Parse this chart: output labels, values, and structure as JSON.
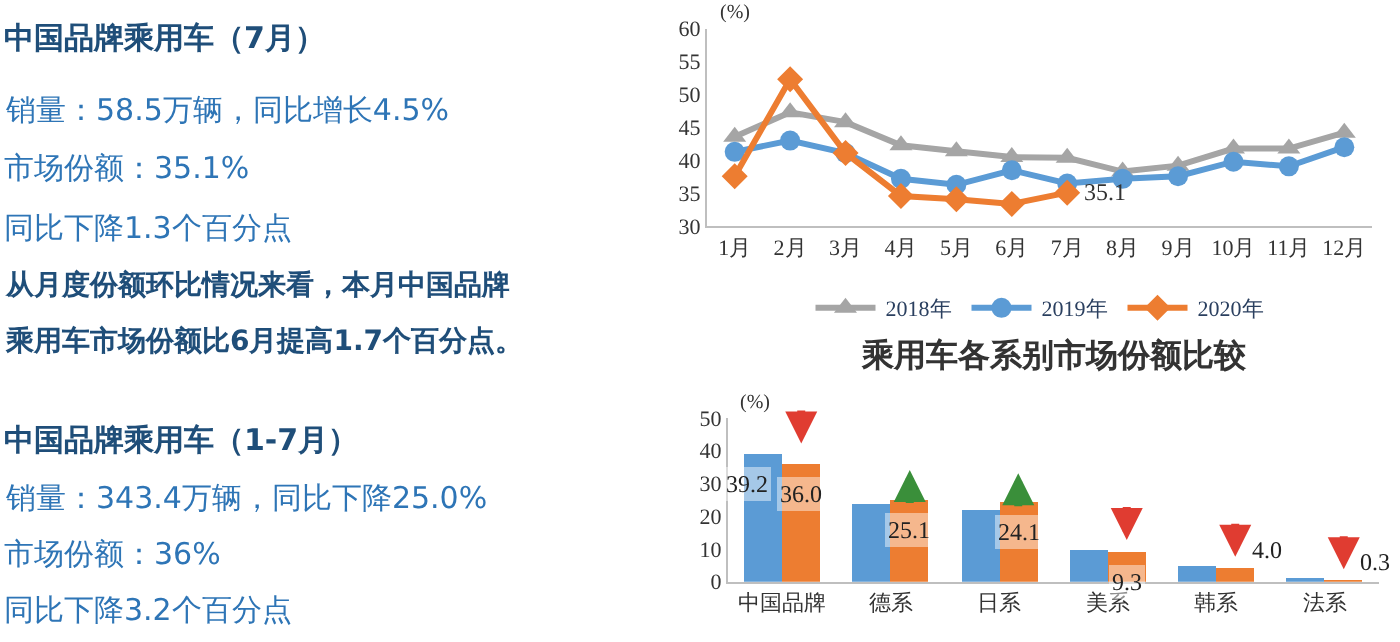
{
  "chart_data": [
    {
      "type": "other",
      "title": "中国品牌乘用车（7月）",
      "annotations": [
        "销量：58.5万辆，同比增长4.5%",
        "市场份额：35.1%",
        "同比下降1.3个百分点",
        "从月度份额环比情况来看，本月中国品牌",
        "乘用车市场份额比6月提高1.7个百分点。"
      ]
    },
    {
      "type": "other",
      "title": "中国品牌乘用车（1-7月）",
      "annotations": [
        "销量：343.4万辆，同比下降25.0%",
        "市场份额：36%",
        "同比下降3.2个百分点"
      ]
    },
    {
      "type": "line",
      "ylabel": "(%)",
      "categories": [
        "1月",
        "2月",
        "3月",
        "4月",
        "5月",
        "6月",
        "7月",
        "8月",
        "9月",
        "10月",
        "11月",
        "12月"
      ],
      "ylim": [
        30,
        60
      ],
      "yticks": [
        30,
        35,
        40,
        45,
        50,
        55,
        60
      ],
      "legend": "bottom",
      "series": [
        {
          "name": "2018年",
          "color": "#a5a5a5",
          "marker": "triangle",
          "values": [
            43.6,
            47.3,
            45.8,
            42.3,
            41.4,
            40.5,
            40.4,
            38.3,
            39.2,
            41.8,
            41.8,
            44.2
          ]
        },
        {
          "name": "2019年",
          "color": "#5b9bd5",
          "marker": "circle",
          "values": [
            41.3,
            43.0,
            41.1,
            37.2,
            36.3,
            38.5,
            36.5,
            37.2,
            37.6,
            39.8,
            39.1,
            42.0
          ]
        },
        {
          "name": "2020年",
          "color": "#ed7d31",
          "marker": "diamond",
          "values": [
            37.6,
            52.3,
            41.1,
            34.6,
            34.1,
            33.4,
            35.1,
            null,
            null,
            null,
            null,
            null
          ],
          "value_labels": [
            null,
            null,
            null,
            null,
            null,
            null,
            "35.1",
            null,
            null,
            null,
            null,
            null
          ]
        }
      ]
    },
    {
      "type": "bar",
      "title": "乘用车各系别市场份额比较",
      "ylabel": "(%)",
      "categories": [
        "中国品牌",
        "德系",
        "日系",
        "美系",
        "韩系",
        "法系"
      ],
      "ylim": [
        0,
        50
      ],
      "yticks": [
        0,
        10,
        20,
        30,
        40,
        50
      ],
      "legend": false,
      "series": [
        {
          "color": "#5b9bd5",
          "values": [
            39.2,
            23.7,
            21.8,
            9.7,
            4.6,
            0.8
          ],
          "value_labels": [
            "39.2",
            null,
            null,
            null,
            null,
            null
          ]
        },
        {
          "color": "#ed7d31",
          "values": [
            36.0,
            25.1,
            24.1,
            9.3,
            4.0,
            0.3
          ],
          "value_labels": [
            "36.0",
            "25.1",
            "24.1",
            "9.3",
            "4.0",
            "0.3"
          ]
        }
      ]
    }
  ]
}
